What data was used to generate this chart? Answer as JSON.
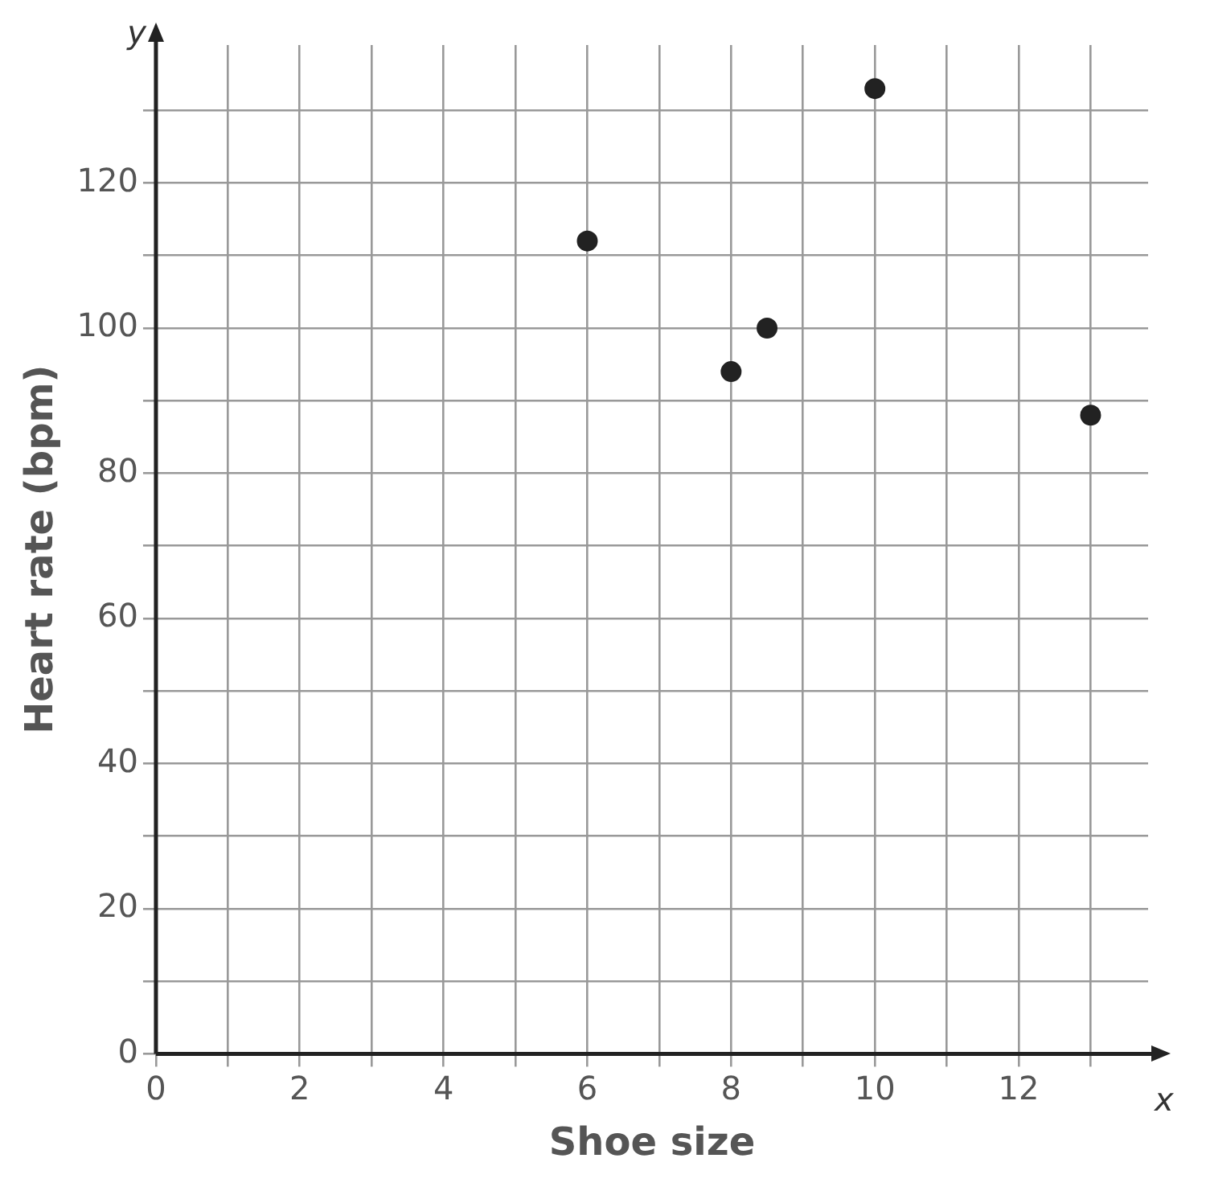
{
  "chart_data": {
    "type": "scatter",
    "xlabel": "Shoe size",
    "ylabel": "Heart rate (bpm)",
    "annotations": [
      "x",
      "y"
    ],
    "x": [
      6,
      8,
      8.5,
      10,
      13
    ],
    "series": [
      {
        "color": "#222222",
        "values": [
          112,
          94,
          100,
          133,
          88
        ]
      }
    ],
    "xlim": [
      0,
      13.8
    ],
    "ylim": [
      0,
      139
    ],
    "xticks": [
      0,
      {
        "value": 1,
        "label": null
      },
      2,
      {
        "value": 3,
        "label": null
      },
      4,
      {
        "value": 5,
        "label": null
      },
      6,
      {
        "value": 7,
        "label": null
      },
      8,
      {
        "value": 9,
        "label": null
      },
      10,
      {
        "value": 11,
        "label": null
      },
      12,
      {
        "value": 13,
        "label": null
      }
    ],
    "yticks": [
      0,
      {
        "value": 10,
        "label": null
      },
      20,
      {
        "value": 30,
        "label": null
      },
      40,
      {
        "value": 50,
        "label": null
      },
      60,
      {
        "value": 70,
        "label": null
      },
      80,
      {
        "value": 90,
        "label": null
      },
      100,
      {
        "value": 110,
        "label": null
      },
      120,
      {
        "value": 130,
        "label": null
      }
    ],
    "grid": true,
    "marker": "circle",
    "legend": false
  }
}
